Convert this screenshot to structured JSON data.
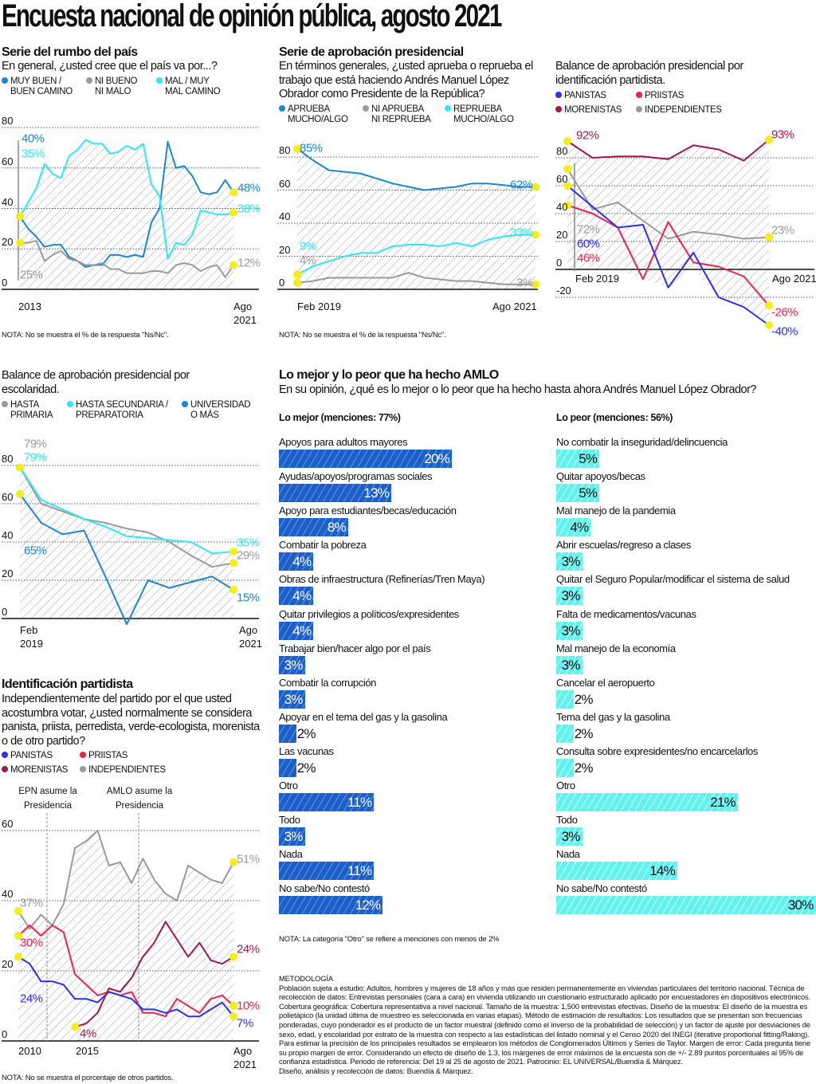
{
  "title": "Encuesta nacional de opinión pública, agosto 2021",
  "sections": {
    "rumbo": {
      "heading": "Serie del rumbo del país",
      "question": "En general, ¿usted cree que el país va por...?",
      "legend": [
        {
          "l1": "MUY BUEN /",
          "l2": "BUEN CAMINO",
          "color": "#1a87d0"
        },
        {
          "l1": "NI BUENO",
          "l2": "NI MALO",
          "color": "#9a9a9a"
        },
        {
          "l1": "MAL / MUY",
          "l2": "MAL CAMINO",
          "color": "#2de8f5"
        }
      ],
      "note": "NOTA: No se muestra el % de la respuesta \"Ns/Nc\"."
    },
    "aprobacion": {
      "heading": "Serie de aprobación presidencial",
      "question": "En términos generales, ¿usted aprueba o reprueba el trabajo que está haciendo Andrés Manuel López Obrador como Presidente de la República?",
      "legend": [
        {
          "l1": "APRUEBA",
          "l2": "MUCHO/ALGO",
          "color": "#1a87d0"
        },
        {
          "l1": "NI APRUEBA",
          "l2": "NI REPRUEBA",
          "color": "#9a9a9a"
        },
        {
          "l1": "REPRUEBA",
          "l2": "MUCHO/ALGO",
          "color": "#2de8f5"
        }
      ],
      "note": "NOTA: No se muestra el % de la respuesta \"Ns/Nc\"."
    },
    "balance_partido": {
      "question": "Balance de aprobación presidencial por identificación partidista.",
      "legend": [
        {
          "l1": "PANISTAS",
          "color": "#2a2ff0"
        },
        {
          "l1": "PRIISTAS",
          "color": "#f0214f"
        },
        {
          "l1": "MORENISTAS",
          "color": "#a0184a"
        },
        {
          "l1": "INDEPENDIENTES",
          "color": "#9a9a9a"
        }
      ]
    },
    "escolaridad": {
      "question": "Balance de aprobación presidencial por escolaridad.",
      "legend": [
        {
          "l1": "HASTA",
          "l2": "PRIMARIA",
          "color": "#9a9a9a"
        },
        {
          "l1": "HASTA SECUNDARIA /",
          "l2": "PREPARATORIA",
          "color": "#2de8f5"
        },
        {
          "l1": "UNIVERSIDAD",
          "l2": "O MÁS",
          "color": "#1a87d0"
        }
      ]
    },
    "identificacion": {
      "heading": "Identificación partidista",
      "question": "Independientemente del partido por el que usted acostumbra votar, ¿usted normalmente se considera panista, priista, perredista, verde-ecologista, morenista o de otro partido?",
      "legend": [
        {
          "l1": "PANISTAS",
          "color": "#2a2ff0"
        },
        {
          "l1": "PRIISTAS",
          "color": "#f0214f"
        },
        {
          "l1": "MORENISTAS",
          "color": "#a0184a"
        },
        {
          "l1": "INDEPENDIENTES",
          "color": "#9a9a9a"
        }
      ],
      "note": "NOTA: No se muestra el porcentaje de otros partidos."
    },
    "amlo": {
      "heading": "Lo mejor y lo peor que ha hecho AMLO",
      "question": "En su opinión, ¿qué es lo mejor o lo peor que ha hecho hasta ahora Andrés Manuel López Obrador?",
      "best_header": "Lo mejor (menciones: 77%)",
      "worst_header": "Lo peor (menciones: 56%)",
      "note": "NOTA: La categoría \"Otro\" se refiere a menciones con menos de 2%"
    }
  },
  "methodology": {
    "heading": "METODOLOGÍA",
    "text": "Población sujeta a estudio: Adultos, hombres y mujeres de 18 años y más que residen permanentemente en viviendas particulares del territorio nacional. Técnica de recolección de datos: Entrevistas personales (cara a cara) en vivienda utilizando un cuestionario estructurado aplicado por encuestadores en dispositivos electrónicos. Cobertura geográfica: Cobertura representativa a nivel nacional. Tamaño de la muestra: 1,500 entrevistas efectivas. Diseño de la muestra: El diseño de la muestra es polietápico (la unidad última de muestreo es seleccionada en varias etapas). Método de estimación de resultados: Los resultados que se presentan son frecuencias ponderadas, cuyo ponderador es el producto de un factor muestral (definido como el inverso de la probabilidad de selección) y un factor de ajuste por desviaciones de sexo, edad, y escolaridad por estrato de la muestra con respecto a las estadísticas del listado nominal y el Censo 2020 del INEGI (iterative proportional fitting/Raking). Para estimar la precisión de los principales resultados se emplearon los métodos de Conglomerados Últimos y Series de Taylor. Margen de error: Cada pregunta tiene su propio margen de error. Considerando un efecto de diseño de 1.3, los márgenes de error máximos de la encuesta son de +/- 2.89 puntos porcentuales al 95% de confianza estadística. Periodo de referencia: Del 19 al 25 de agosto de 2021. Patrocinio: EL UNIVERSAL/Buendía & Márquez.",
    "credits": "Diseño, análisis y recolección de datos: Buendía & Márquez."
  },
  "colors": {
    "highlight_dot": "#f2ee1c",
    "best_bar": "#1c5fc8",
    "worst_bar": "#5ff2ee",
    "hatch": "#9a9a9a"
  },
  "chart_data": [
    {
      "id": "rumbo",
      "type": "line",
      "ylim": [
        0,
        80
      ],
      "yticks": [
        80,
        60,
        40,
        20,
        0
      ],
      "grid": true,
      "hatched_area": true,
      "xticks": [
        "2013",
        "Ago\n2021"
      ],
      "series": [
        {
          "name": "MUY BUEN / BUEN CAMINO",
          "color": "#1a87d0",
          "values": [
            36,
            30,
            26,
            21,
            22,
            22,
            16,
            14,
            11,
            12,
            12,
            17,
            17,
            16,
            17,
            16,
            33,
            40,
            73,
            60,
            61,
            56,
            48,
            47,
            48,
            54,
            48
          ]
        },
        {
          "name": "NI BUENO NI MALO",
          "color": "#9a9a9a",
          "values": [
            23,
            23,
            24,
            14,
            17,
            19,
            15,
            14,
            12,
            12,
            13,
            10,
            10,
            8,
            8,
            8,
            9,
            9,
            8,
            12,
            13,
            12,
            9,
            11,
            12,
            6,
            12
          ]
        },
        {
          "name": "MAL / MUY MAL CAMINO",
          "color": "#2de8f5",
          "values": [
            36,
            43,
            50,
            62,
            57,
            55,
            66,
            69,
            74,
            72,
            72,
            67,
            68,
            71,
            69,
            72,
            52,
            46,
            15,
            23,
            22,
            27,
            39,
            38,
            37,
            37,
            38
          ]
        }
      ],
      "annotations": [
        {
          "text": "40%",
          "color": "#1a87d0"
        },
        {
          "text": "35%",
          "color": "#2de8f5"
        },
        {
          "text": "25%",
          "color": "#9a9a9a"
        },
        {
          "text": "48%",
          "color": "#1a87d0"
        },
        {
          "text": "38%",
          "color": "#2de8f5"
        },
        {
          "text": "12%",
          "color": "#9a9a9a"
        }
      ]
    },
    {
      "id": "aprobacion",
      "type": "line",
      "ylim": [
        0,
        80
      ],
      "yticks": [
        80,
        60,
        40,
        20,
        0
      ],
      "grid": true,
      "hatched_area": true,
      "xticks": [
        "Feb 2019",
        "Ago 2021"
      ],
      "series": [
        {
          "name": "APRUEBA MUCHO/ALGO",
          "color": "#1a87d0",
          "values": [
            85,
            78,
            72,
            71,
            70,
            67,
            64,
            62,
            60,
            61,
            62,
            64,
            64,
            63,
            62,
            62
          ]
        },
        {
          "name": "NI APRUEBA NI REPRUEBA",
          "color": "#9a9a9a",
          "values": [
            4,
            5,
            7,
            7,
            7,
            7,
            7,
            10,
            7,
            6,
            5,
            5,
            4,
            3,
            3,
            3
          ]
        },
        {
          "name": "REPRUEBA MUCHO/ALGO",
          "color": "#2de8f5",
          "values": [
            9,
            14,
            17,
            20,
            22,
            22,
            26,
            27,
            27,
            26,
            28,
            26,
            30,
            32,
            33,
            33
          ]
        }
      ],
      "annotations": [
        {
          "text": "85%",
          "color": "#1a87d0"
        },
        {
          "text": "62%",
          "color": "#1a87d0"
        },
        {
          "text": "9%",
          "color": "#2de8f5"
        },
        {
          "text": "4%",
          "color": "#9a9a9a"
        },
        {
          "text": "33%",
          "color": "#2de8f5"
        },
        {
          "text": "3%",
          "color": "#9a9a9a"
        }
      ]
    },
    {
      "id": "balance_partido",
      "type": "line",
      "ylim": [
        -40,
        93
      ],
      "yticks": [
        80,
        60,
        40,
        20,
        0,
        -20
      ],
      "grid": true,
      "hatched_area": true,
      "xticks": [
        "Feb 2019",
        "Ago 2021"
      ],
      "series": [
        {
          "name": "MORENISTAS",
          "color": "#a0184a",
          "values": [
            92,
            80,
            81,
            81,
            79,
            89,
            86,
            78,
            93
          ]
        },
        {
          "name": "INDEPENDIENTES",
          "color": "#9a9a9a",
          "values": [
            72,
            43,
            48,
            35,
            22,
            27,
            25,
            22,
            23
          ]
        },
        {
          "name": "PRIISTAS",
          "color": "#f0214f",
          "values": [
            46,
            40,
            30,
            -7,
            34,
            5,
            2,
            -5,
            -26
          ]
        },
        {
          "name": "PANISTAS",
          "color": "#2a2ff0",
          "values": [
            60,
            45,
            30,
            32,
            -13,
            12,
            -20,
            -27,
            -40
          ]
        }
      ],
      "annotations": [
        {
          "text": "92%",
          "color": "#a0184a"
        },
        {
          "text": "93%",
          "color": "#a0184a"
        },
        {
          "text": "72%",
          "color": "#9a9a9a"
        },
        {
          "text": "60%",
          "color": "#2a2ff0"
        },
        {
          "text": "46%",
          "color": "#f0214f"
        },
        {
          "text": "23%",
          "color": "#9a9a9a"
        },
        {
          "text": "-26%",
          "color": "#f0214f"
        },
        {
          "text": "-40%",
          "color": "#2a2ff0"
        }
      ]
    },
    {
      "id": "escolaridad",
      "type": "line",
      "ylim": [
        -3,
        80
      ],
      "yticks": [
        80,
        60,
        40,
        20,
        0
      ],
      "grid": false,
      "hatched_area": true,
      "xticks": [
        "Feb\n2019",
        "Ago\n2021"
      ],
      "series": [
        {
          "name": "HASTA PRIMARIA",
          "color": "#9a9a9a",
          "values": [
            79,
            60,
            56,
            52,
            50,
            47,
            45,
            40,
            33,
            27,
            29
          ]
        },
        {
          "name": "HASTA SECUNDARIA / PREPARATORIA",
          "color": "#2de8f5",
          "values": [
            79,
            62,
            57,
            52,
            48,
            43,
            42,
            41,
            40,
            34,
            35
          ]
        },
        {
          "name": "UNIVERSIDAD O MÁS",
          "color": "#1a87d0",
          "values": [
            65,
            50,
            44,
            46,
            22,
            -3,
            20,
            16,
            19,
            22,
            15
          ]
        }
      ],
      "annotations": [
        {
          "text": "79%",
          "color": "#9a9a9a"
        },
        {
          "text": "79%",
          "color": "#2de8f5"
        },
        {
          "text": "65%",
          "color": "#1a87d0"
        },
        {
          "text": "35%",
          "color": "#2de8f5"
        },
        {
          "text": "29%",
          "color": "#9a9a9a"
        },
        {
          "text": "15%",
          "color": "#1a87d0"
        }
      ]
    },
    {
      "id": "identificacion",
      "type": "line",
      "ylim": [
        0,
        60
      ],
      "yticks": [
        60,
        40,
        20,
        0
      ],
      "grid": true,
      "hatched_area": true,
      "xticks": [
        "2010",
        "2015",
        "Ago\n2021"
      ],
      "events": [
        {
          "text": "EPN asume la\nPresidencia"
        },
        {
          "text": "AMLO asume la\nPresidencia"
        }
      ],
      "series": [
        {
          "name": "INDEPENDIENTES",
          "color": "#9a9a9a",
          "values": [
            37,
            32,
            36,
            33,
            39,
            55,
            57,
            60,
            50,
            51,
            45,
            52,
            46,
            42,
            40,
            50,
            48,
            46,
            45,
            51
          ]
        },
        {
          "name": "PRIISTAS",
          "color": "#f0214f",
          "values": [
            30,
            33,
            30,
            33,
            31,
            19,
            16,
            13,
            14,
            13,
            14,
            8,
            8,
            7,
            12,
            10,
            8,
            12,
            13,
            10
          ]
        },
        {
          "name": "PANISTAS",
          "color": "#2a2ff0",
          "values": [
            24,
            22,
            17,
            17,
            16,
            12,
            12,
            11,
            14,
            13,
            12,
            9,
            9,
            8,
            9,
            7,
            7,
            9,
            11,
            7
          ]
        },
        {
          "name": "MORENISTAS",
          "color": "#a0184a",
          "values": [
            null,
            null,
            null,
            null,
            null,
            4,
            5,
            8,
            15,
            14,
            18,
            24,
            28,
            34,
            29,
            24,
            28,
            23,
            22,
            24
          ]
        }
      ],
      "annotations": [
        {
          "text": "37%",
          "color": "#9a9a9a"
        },
        {
          "text": "30%",
          "color": "#f0214f"
        },
        {
          "text": "24%",
          "color": "#2a2ff0"
        },
        {
          "text": "4%",
          "color": "#a0184a"
        },
        {
          "text": "51%",
          "color": "#9a9a9a"
        },
        {
          "text": "24%",
          "color": "#a0184a"
        },
        {
          "text": "10%",
          "color": "#f0214f"
        },
        {
          "text": "7%",
          "color": "#2a2ff0"
        }
      ]
    },
    {
      "id": "lo_mejor",
      "type": "bar",
      "orientation": "horizontal",
      "unit": "%",
      "categories": [
        "Apoyos para adultos mayores",
        "Ayudas/apoyos/programas sociales",
        "Apoyo para estudiantes/becas/educación",
        "Combatir la pobreza",
        "Obras de infraestructura (Refinerías/Tren Maya)",
        "Quitar privilegios a políticos/expresidentes",
        "Trabajar bien/hacer algo por el país",
        "Combatir la corrupción",
        "Apoyar en el tema del gas y la gasolina",
        "Las vacunas",
        "Otro",
        "Todo",
        "Nada",
        "No sabe/No contestó"
      ],
      "values": [
        20,
        13,
        8,
        4,
        4,
        4,
        3,
        3,
        2,
        2,
        11,
        3,
        11,
        12
      ]
    },
    {
      "id": "lo_peor",
      "type": "bar",
      "orientation": "horizontal",
      "unit": "%",
      "categories": [
        "No combatir la inseguridad/delincuencia",
        "Quitar apoyos/becas",
        "Mal manejo de la pandemia",
        "Abrir escuelas/regreso a clases",
        "Quitar el Seguro Popular/modificar el sistema de salud",
        "Falta de medicamentos/vacunas",
        "Mal manejo de la economía",
        "Cancelar el aeropuerto",
        "Tema del gas y la gasolina",
        "Consulta sobre expresidentes/no encarcelarlos",
        "Otro",
        "Todo",
        "Nada",
        "No sabe/No contestó"
      ],
      "values": [
        5,
        5,
        4,
        3,
        3,
        3,
        3,
        2,
        2,
        2,
        21,
        3,
        14,
        30
      ]
    }
  ]
}
